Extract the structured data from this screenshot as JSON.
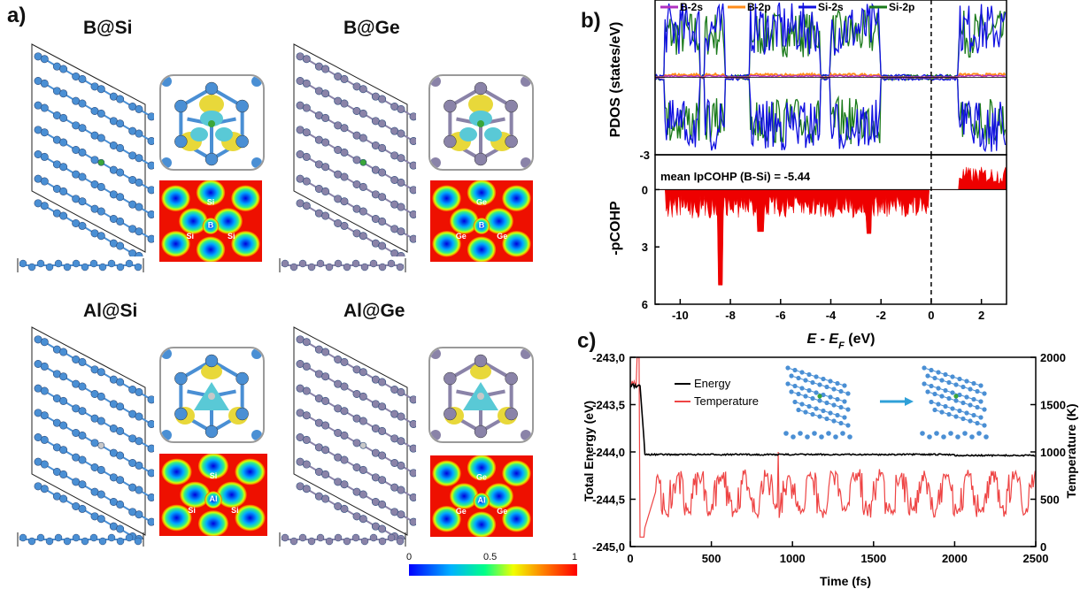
{
  "panel_labels": {
    "a": "a)",
    "b": "b)",
    "c": "c)"
  },
  "panel_a": {
    "structures": [
      {
        "title": "B@Si",
        "host": "Si",
        "dopant": "B",
        "host_color": "#4a8fd4",
        "dopant_color": "#3aa63a"
      },
      {
        "title": "B@Ge",
        "host": "Ge",
        "dopant": "B",
        "host_color": "#8a83a8",
        "dopant_color": "#3aa63a"
      },
      {
        "title": "Al@Si",
        "host": "Si",
        "dopant": "Al",
        "host_color": "#4a8fd4",
        "dopant_color": "#c8c8c8"
      },
      {
        "title": "Al@Ge",
        "host": "Ge",
        "dopant": "Al",
        "host_color": "#8a83a8",
        "dopant_color": "#c8c8c8"
      }
    ],
    "colorbar": {
      "min": "0",
      "mid": "0.5",
      "max": "1"
    }
  },
  "chart_data": [
    {
      "type": "line",
      "panel": "b-top",
      "ylabel": "PDOS (states/eV)",
      "ylim": [
        -3,
        3
      ],
      "xlim": [
        -11,
        3
      ],
      "yticks": [
        "-3"
      ],
      "legend": {
        "placement": "top",
        "entries": [
          "B-2s",
          "B-2p",
          "Si-2s",
          "Si-2p"
        ]
      },
      "series": [
        {
          "name": "B-2s",
          "color": "#b030c0"
        },
        {
          "name": "B-2p",
          "color": "#ff8c1a"
        },
        {
          "name": "Si-2s",
          "color": "#1010e0"
        },
        {
          "name": "Si-2p",
          "color": "#1a7a1a"
        }
      ],
      "fermi_level": 0
    },
    {
      "type": "area",
      "panel": "b-bottom",
      "ylabel": "-pCOHP",
      "xlabel": "E - E",
      "xlabel_sub": "F",
      "xlabel_unit": " (eV)",
      "annotation": "mean IpCOHP (B-Si) = -5.44",
      "ylim": [
        -1.5,
        6
      ],
      "xlim": [
        -11,
        3
      ],
      "yticks": [
        "0",
        "3",
        "6"
      ],
      "xticks": [
        "-10",
        "-8",
        "-6",
        "-4",
        "-2",
        "0",
        "2"
      ],
      "color": "#ee0000",
      "fermi_level": 0
    },
    {
      "type": "line",
      "panel": "c",
      "xlabel": "Time (fs)",
      "ylabel_left": "Total Energy (eV)",
      "ylabel_right": "Temperature (K)",
      "xlim": [
        0,
        2500
      ],
      "ylim_left": [
        -245.0,
        -243.0
      ],
      "ylim_right": [
        0,
        2000
      ],
      "xticks": [
        "0",
        "500",
        "1000",
        "1500",
        "2000",
        "2500"
      ],
      "yticks_left": [
        "-245,0",
        "-244,5",
        "-244,0",
        "-243,5",
        "-243,0"
      ],
      "yticks_right": [
        "0",
        "500",
        "1000",
        "1500",
        "2000"
      ],
      "legend": {
        "placement": "top-left",
        "entries": [
          "Energy",
          "Temperature"
        ]
      },
      "series": [
        {
          "name": "Energy",
          "axis": "left",
          "color": "#000000",
          "mean": -244.02
        },
        {
          "name": "Temperature",
          "axis": "right",
          "color": "#ee4444",
          "mean": 560
        }
      ]
    }
  ]
}
